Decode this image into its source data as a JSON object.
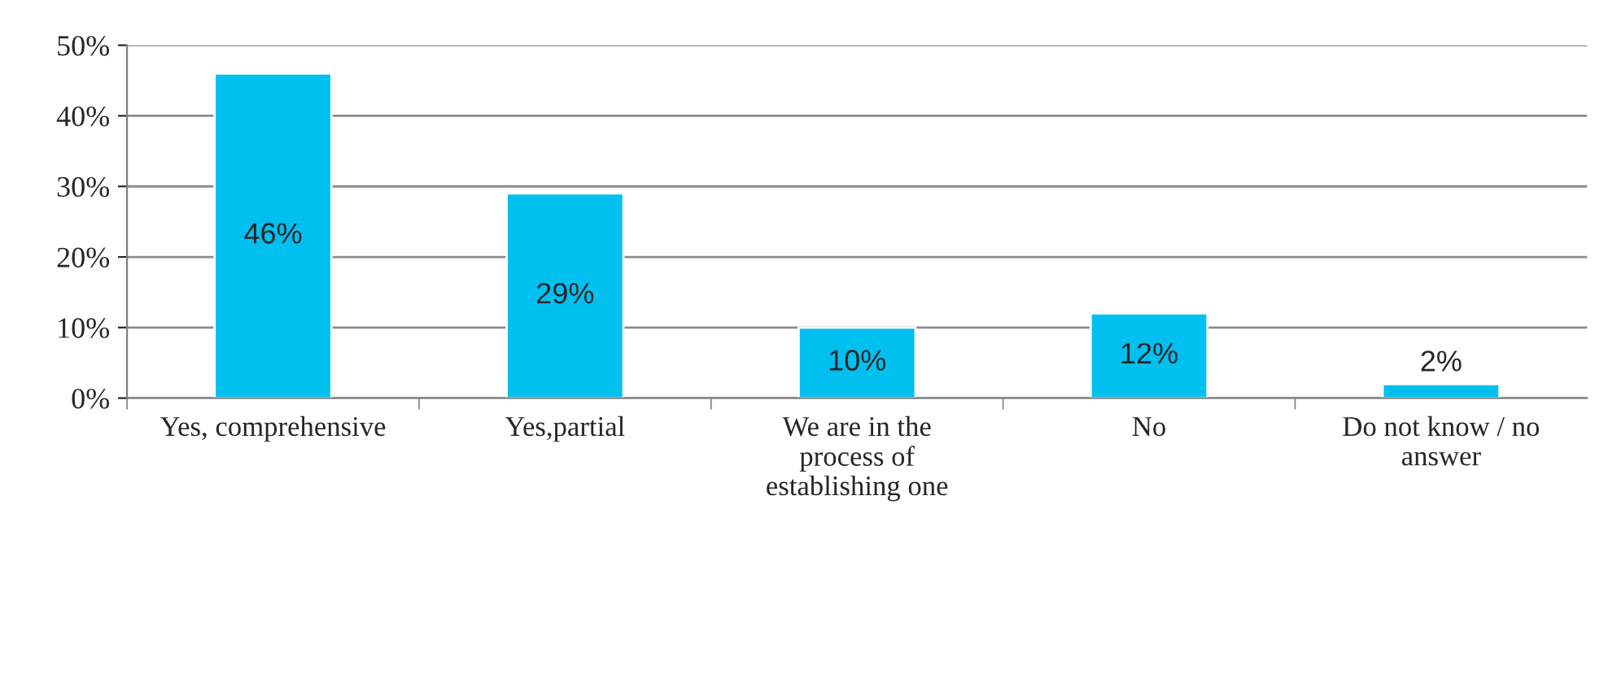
{
  "chart_data": {
    "type": "bar",
    "categories": [
      "Yes, comprehensive",
      "Yes,partial",
      "We are in the\nprocess of\nestablishing one",
      "No",
      "Do not know / no\nanswer"
    ],
    "values": [
      46,
      29,
      10,
      12,
      2
    ],
    "value_labels": [
      "46%",
      "29%",
      "10%",
      "12%",
      "2%"
    ],
    "color": "#00c0f0",
    "ylim": [
      0,
      50
    ],
    "yticks": [
      {
        "value": 0,
        "label": "0%"
      },
      {
        "value": 10,
        "label": "10%"
      },
      {
        "value": 20,
        "label": "20%"
      },
      {
        "value": 30,
        "label": "30%"
      },
      {
        "value": 40,
        "label": "40%"
      },
      {
        "value": 50,
        "label": "50%"
      }
    ],
    "grid": "y",
    "legend": false
  }
}
